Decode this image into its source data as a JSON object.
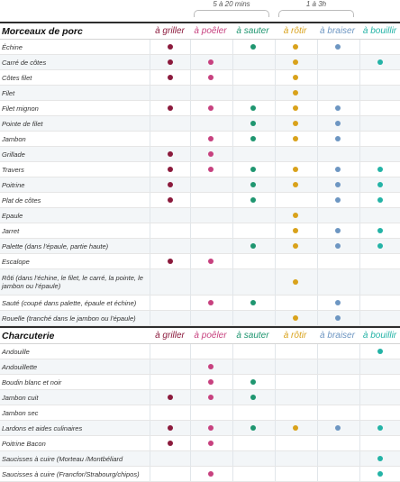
{
  "timing_notes": [
    {
      "label": "5 à 20 mins",
      "over": [
        "poeler",
        "sauter"
      ]
    },
    {
      "label": "1 à 3h",
      "over": [
        "rotir",
        "braiser"
      ]
    }
  ],
  "methods": [
    {
      "key": "griller",
      "label": "à griller",
      "color": "#8b1a3c"
    },
    {
      "key": "poeler",
      "label": "à poêler",
      "color": "#c7417f"
    },
    {
      "key": "sauter",
      "label": "à sauter",
      "color": "#1f9670"
    },
    {
      "key": "rotir",
      "label": "à rôtir",
      "color": "#d9a21b"
    },
    {
      "key": "braiser",
      "label": "à braiser",
      "color": "#6d96c2"
    },
    {
      "key": "bouillir",
      "label": "à bouillir",
      "color": "#24b3a6"
    }
  ],
  "sections": [
    {
      "title": "Morceaux de porc",
      "rows": [
        {
          "name": "Échine",
          "methods": [
            "griller",
            "sauter",
            "rotir",
            "braiser"
          ]
        },
        {
          "name": "Carré de côtes",
          "methods": [
            "griller",
            "poeler",
            "rotir",
            "bouillir"
          ]
        },
        {
          "name": "Côtes filet",
          "methods": [
            "griller",
            "poeler",
            "rotir"
          ]
        },
        {
          "name": "Filet",
          "methods": [
            "rotir"
          ]
        },
        {
          "name": "Filet mignon",
          "methods": [
            "griller",
            "poeler",
            "sauter",
            "rotir",
            "braiser"
          ]
        },
        {
          "name": "Pointe de filet",
          "methods": [
            "sauter",
            "rotir",
            "braiser"
          ]
        },
        {
          "name": "Jambon",
          "methods": [
            "poeler",
            "sauter",
            "rotir",
            "braiser"
          ]
        },
        {
          "name": "Grillade",
          "methods": [
            "griller",
            "poeler"
          ]
        },
        {
          "name": "Travers",
          "methods": [
            "griller",
            "poeler",
            "sauter",
            "rotir",
            "braiser",
            "bouillir"
          ]
        },
        {
          "name": "Poitrine",
          "methods": [
            "griller",
            "sauter",
            "rotir",
            "braiser",
            "bouillir"
          ]
        },
        {
          "name": "Plat de côtes",
          "methods": [
            "griller",
            "sauter",
            "braiser",
            "bouillir"
          ]
        },
        {
          "name": "Epaule",
          "methods": [
            "rotir"
          ]
        },
        {
          "name": "Jarret",
          "methods": [
            "rotir",
            "braiser",
            "bouillir"
          ]
        },
        {
          "name": "Palette (dans l'épaule, partie haute)",
          "methods": [
            "sauter",
            "rotir",
            "braiser",
            "bouillir"
          ]
        },
        {
          "name": "Escalope",
          "methods": [
            "griller",
            "poeler"
          ]
        },
        {
          "name": "Rôti (dans l'échine, le filet, le carré, la pointe, le jambon ou l'épaule)",
          "methods": [
            "rotir"
          ]
        },
        {
          "name": "Sauté (coupé dans palette, épaule et échine)",
          "methods": [
            "poeler",
            "sauter",
            "braiser"
          ]
        },
        {
          "name": "Rouelle (tranché dans le jambon ou l'épaule)",
          "methods": [
            "rotir",
            "braiser"
          ]
        }
      ]
    },
    {
      "title": "Charcuterie",
      "rows": [
        {
          "name": "Andouille",
          "methods": [
            "bouillir"
          ]
        },
        {
          "name": "Andouillette",
          "methods": [
            "poeler"
          ]
        },
        {
          "name": "Boudin blanc et noir",
          "methods": [
            "poeler",
            "sauter"
          ]
        },
        {
          "name": "Jambon cuit",
          "methods": [
            "griller",
            "poeler",
            "sauter"
          ]
        },
        {
          "name": "Jambon sec",
          "methods": []
        },
        {
          "name": "Lardons et aides culinaires",
          "methods": [
            "griller",
            "poeler",
            "sauter",
            "rotir",
            "braiser",
            "bouillir"
          ]
        },
        {
          "name": "Poitrine Bacon",
          "methods": [
            "griller",
            "poeler"
          ]
        },
        {
          "name": "Saucisses à cuire (Morteau /Montbéliard",
          "methods": [
            "bouillir"
          ]
        },
        {
          "name": "Saucisses à cuire (Francfor/Strabourg/chipos)",
          "methods": [
            "poeler",
            "bouillir"
          ]
        }
      ]
    }
  ]
}
